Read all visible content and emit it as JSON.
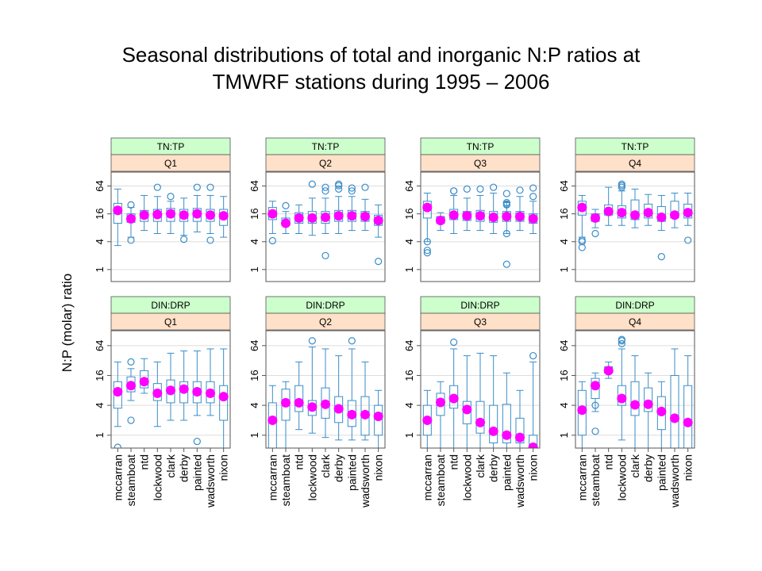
{
  "chart_data": {
    "type": "box",
    "title_lines": [
      "Seasonal distributions of total and inorganic N:P ratios at",
      "TMWRF stations during 1995 – 2006"
    ],
    "ylabel": "N:P (molar) ratio",
    "y_scale": "log2",
    "ylim": [
      0.55,
      128
    ],
    "y_ticks": [
      1,
      4,
      16,
      64
    ],
    "y_tick_labels": [
      "1",
      "4",
      "16",
      "64"
    ],
    "stations": [
      "mccarran",
      "steamboat",
      "ntd",
      "lockwood",
      "clark",
      "derby",
      "painted",
      "wadsworth",
      "nixon"
    ],
    "colors": {
      "box": "#3a8dc8",
      "median_dot": "#ff00ff",
      "strip_top": "#ccffcc",
      "strip_bottom": "#ffe0c8",
      "grid": "#dddddd",
      "frame": "#555555"
    },
    "panels": [
      {
        "ratio": "TN:TP",
        "quarter": "Q1",
        "boxes": [
          {
            "whisker_lo": 3.3,
            "q1": 10,
            "median": 19,
            "q3": 27,
            "whisker_hi": 55,
            "outliers": []
          },
          {
            "whisker_lo": 5,
            "q1": 10.5,
            "median": 12.5,
            "q3": 16,
            "whisker_hi": 22,
            "outliers": [
              25,
              4.3
            ]
          },
          {
            "whisker_lo": 7,
            "q1": 11,
            "median": 15,
            "q3": 19,
            "whisker_hi": 40,
            "outliers": []
          },
          {
            "whisker_lo": 6,
            "q1": 11,
            "median": 15.5,
            "q3": 20,
            "whisker_hi": 38,
            "outliers": [
              60
            ]
          },
          {
            "whisker_lo": 6,
            "q1": 11,
            "median": 16,
            "q3": 21,
            "whisker_hi": 30,
            "outliers": [
              38
            ]
          },
          {
            "whisker_lo": 5.5,
            "q1": 11,
            "median": 15,
            "q3": 20,
            "whisker_hi": 35,
            "outliers": [
              4.5
            ]
          },
          {
            "whisker_lo": 6.5,
            "q1": 11,
            "median": 16,
            "q3": 21,
            "whisker_hi": 40,
            "outliers": [
              60
            ]
          },
          {
            "whisker_lo": 6,
            "q1": 11,
            "median": 15,
            "q3": 20,
            "whisker_hi": 40,
            "outliers": [
              60,
              4.3
            ]
          },
          {
            "whisker_lo": 5,
            "q1": 9,
            "median": 14.5,
            "q3": 20,
            "whisker_hi": 38,
            "outliers": []
          }
        ]
      },
      {
        "ratio": "TN:TP",
        "quarter": "Q2",
        "boxes": [
          {
            "whisker_lo": 6,
            "q1": 12,
            "median": 16,
            "q3": 22,
            "whisker_hi": 30,
            "outliers": [
              4.2
            ]
          },
          {
            "whisker_lo": 6,
            "q1": 9,
            "median": 10,
            "q3": 13,
            "whisker_hi": 18,
            "outliers": [
              24
            ]
          },
          {
            "whisker_lo": 6,
            "q1": 10,
            "median": 13,
            "q3": 17,
            "whisker_hi": 25,
            "outliers": []
          },
          {
            "whisker_lo": 5.5,
            "q1": 10,
            "median": 13,
            "q3": 18,
            "whisker_hi": 35,
            "outliers": [
              70
            ]
          },
          {
            "whisker_lo": 6,
            "q1": 10,
            "median": 13.5,
            "q3": 18,
            "whisker_hi": 35,
            "outliers": [
              50,
              60,
              2
            ]
          },
          {
            "whisker_lo": 6,
            "q1": 11,
            "median": 14.5,
            "q3": 19,
            "whisker_hi": 38,
            "outliers": [
              55,
              65,
              70
            ]
          },
          {
            "whisker_lo": 7,
            "q1": 11,
            "median": 14.5,
            "q3": 19,
            "whisker_hi": 38,
            "outliers": [
              50,
              58
            ]
          },
          {
            "whisker_lo": 7,
            "q1": 11,
            "median": 14,
            "q3": 18,
            "whisker_hi": 33,
            "outliers": [
              60
            ]
          },
          {
            "whisker_lo": 5,
            "q1": 9,
            "median": 11.5,
            "q3": 15,
            "whisker_hi": 25,
            "outliers": [
              1.5
            ]
          }
        ]
      },
      {
        "ratio": "TN:TP",
        "quarter": "Q3",
        "boxes": [
          {
            "whisker_lo": 4,
            "q1": 13,
            "median": 22,
            "q3": 30,
            "whisker_hi": 45,
            "outliers": [
              4,
              2.6,
              2.3
            ]
          },
          {
            "whisker_lo": 7,
            "q1": 10,
            "median": 11.5,
            "q3": 14,
            "whisker_hi": 17,
            "outliers": []
          },
          {
            "whisker_lo": 6,
            "q1": 12,
            "median": 15,
            "q3": 20,
            "whisker_hi": 40,
            "outliers": [
              50,
              50
            ]
          },
          {
            "whisker_lo": 7,
            "q1": 11.5,
            "median": 14.5,
            "q3": 18,
            "whisker_hi": 35,
            "outliers": [
              55
            ]
          },
          {
            "whisker_lo": 7,
            "q1": 11,
            "median": 14.5,
            "q3": 19,
            "whisker_hi": 40,
            "outliers": [
              55
            ]
          },
          {
            "whisker_lo": 6,
            "q1": 10.5,
            "median": 13.5,
            "q3": 18,
            "whisker_hi": 45,
            "outliers": [
              60
            ]
          },
          {
            "whisker_lo": 6,
            "q1": 11,
            "median": 14,
            "q3": 18,
            "whisker_hi": 28,
            "outliers": [
              44,
              28,
              26,
              25,
              6,
              1.3
            ]
          },
          {
            "whisker_lo": 7,
            "q1": 11,
            "median": 14,
            "q3": 18,
            "whisker_hi": 38,
            "outliers": [
              52
            ]
          },
          {
            "whisker_lo": 6,
            "q1": 10,
            "median": 12.5,
            "q3": 16,
            "whisker_hi": 30,
            "outliers": [
              38,
              58
            ]
          }
        ]
      },
      {
        "ratio": "TN:TP",
        "quarter": "Q4",
        "boxes": [
          {
            "whisker_lo": 5,
            "q1": 15,
            "median": 22,
            "q3": 30,
            "whisker_hi": 40,
            "outliers": [
              4.3,
              4,
              3
            ]
          },
          {
            "whisker_lo": 8,
            "q1": 11,
            "median": 13,
            "q3": 16,
            "whisker_hi": 20,
            "outliers": [
              6
            ]
          },
          {
            "whisker_lo": 9,
            "q1": 15,
            "median": 18,
            "q3": 25,
            "whisker_hi": 60,
            "outliers": []
          },
          {
            "whisker_lo": 9,
            "q1": 13,
            "median": 17,
            "q3": 24,
            "whisker_hi": 50,
            "outliers": [
              60,
              65,
              70
            ]
          },
          {
            "whisker_lo": 8,
            "q1": 12,
            "median": 15,
            "q3": 32,
            "whisker_hi": 55,
            "outliers": []
          },
          {
            "whisker_lo": 9,
            "q1": 13,
            "median": 17,
            "q3": 26,
            "whisker_hi": 42,
            "outliers": []
          },
          {
            "whisker_lo": 7,
            "q1": 11,
            "median": 13.5,
            "q3": 23,
            "whisker_hi": 40,
            "outliers": [
              1.9
            ]
          },
          {
            "whisker_lo": 8,
            "q1": 13,
            "median": 15,
            "q3": 30,
            "whisker_hi": 45,
            "outliers": []
          },
          {
            "whisker_lo": 9,
            "q1": 13,
            "median": 17,
            "q3": 26,
            "whisker_hi": 45,
            "outliers": [
              4.3
            ]
          }
        ]
      },
      {
        "ratio": "DIN:DRP",
        "quarter": "Q1",
        "boxes": [
          {
            "whisker_lo": 1.5,
            "q1": 3.5,
            "median": 7.5,
            "q3": 12,
            "whisker_hi": 30,
            "outliers": [
              0.57
            ]
          },
          {
            "whisker_lo": 5,
            "q1": 7.5,
            "median": 10,
            "q3": 15,
            "whisker_hi": 22,
            "outliers": [
              30,
              2
            ]
          },
          {
            "whisker_lo": 7,
            "q1": 9,
            "median": 12,
            "q3": 20,
            "whisker_hi": 35,
            "outliers": []
          },
          {
            "whisker_lo": 1.5,
            "q1": 5,
            "median": 7,
            "q3": 11,
            "whisker_hi": 30,
            "outliers": []
          },
          {
            "whisker_lo": 2,
            "q1": 4.5,
            "median": 8,
            "q3": 13,
            "whisker_hi": 45,
            "outliers": []
          },
          {
            "whisker_lo": 2,
            "q1": 4.5,
            "median": 8.5,
            "q3": 12,
            "whisker_hi": 50,
            "outliers": []
          },
          {
            "whisker_lo": 2.5,
            "q1": 4.5,
            "median": 7.5,
            "q3": 12,
            "whisker_hi": 50,
            "outliers": [
              0.75
            ]
          },
          {
            "whisker_lo": 2.5,
            "q1": 4.5,
            "median": 7,
            "q3": 12,
            "whisker_hi": 55,
            "outliers": []
          },
          {
            "whisker_lo": 0.55,
            "q1": 2,
            "median": 6,
            "q3": 10,
            "whisker_hi": 55,
            "outliers": []
          }
        ]
      },
      {
        "ratio": "DIN:DRP",
        "quarter": "Q2",
        "boxes": [
          {
            "whisker_lo": 0.55,
            "q1": 0.55,
            "median": 2,
            "q3": 4.5,
            "whisker_hi": 10,
            "outliers": []
          },
          {
            "whisker_lo": 0.55,
            "q1": 2,
            "median": 4.5,
            "q3": 8.5,
            "whisker_hi": 12,
            "outliers": []
          },
          {
            "whisker_lo": 1.3,
            "q1": 3,
            "median": 4.5,
            "q3": 10,
            "whisker_hi": 30,
            "outliers": []
          },
          {
            "whisker_lo": 1.1,
            "q1": 2.5,
            "median": 3.7,
            "q3": 5,
            "whisker_hi": 60,
            "outliers": [
              80
            ]
          },
          {
            "whisker_lo": 0.9,
            "q1": 2.2,
            "median": 4.2,
            "q3": 9,
            "whisker_hi": 55,
            "outliers": []
          },
          {
            "whisker_lo": 0.8,
            "q1": 1.8,
            "median": 3.4,
            "q3": 6,
            "whisker_hi": 40,
            "outliers": []
          },
          {
            "whisker_lo": 0.8,
            "q1": 1.5,
            "median": 2.6,
            "q3": 5,
            "whisker_hi": 55,
            "outliers": [
              80
            ]
          },
          {
            "whisker_lo": 0.8,
            "q1": 1,
            "median": 2.6,
            "q3": 6,
            "whisker_hi": 30,
            "outliers": []
          },
          {
            "whisker_lo": 0.55,
            "q1": 1,
            "median": 2.4,
            "q3": 4,
            "whisker_hi": 8,
            "outliers": []
          }
        ]
      },
      {
        "ratio": "DIN:DRP",
        "quarter": "Q3",
        "boxes": [
          {
            "whisker_lo": 0.55,
            "q1": 1,
            "median": 2,
            "q3": 4,
            "whisker_hi": 8,
            "outliers": []
          },
          {
            "whisker_lo": 0.55,
            "q1": 2.5,
            "median": 4.6,
            "q3": 7,
            "whisker_hi": 12,
            "outliers": []
          },
          {
            "whisker_lo": 0.55,
            "q1": 3.5,
            "median": 5.5,
            "q3": 10,
            "whisker_hi": 55,
            "outliers": [
              75
            ]
          },
          {
            "whisker_lo": 0.55,
            "q1": 1.7,
            "median": 3.3,
            "q3": 4.8,
            "whisker_hi": 40,
            "outliers": []
          },
          {
            "whisker_lo": 0.55,
            "q1": 1.1,
            "median": 1.8,
            "q3": 4.8,
            "whisker_hi": 45,
            "outliers": []
          },
          {
            "whisker_lo": 0.55,
            "q1": 0.7,
            "median": 1.2,
            "q3": 4,
            "whisker_hi": 40,
            "outliers": []
          },
          {
            "whisker_lo": 0.55,
            "q1": 0.7,
            "median": 1,
            "q3": 4.2,
            "whisker_hi": 18,
            "outliers": []
          },
          {
            "whisker_lo": 0.55,
            "q1": 0.7,
            "median": 0.9,
            "q3": 2.2,
            "whisker_hi": 8,
            "outliers": []
          },
          {
            "whisker_lo": 0.55,
            "q1": 0.55,
            "median": 0.57,
            "q3": 1,
            "whisker_hi": 30,
            "outliers": [
              40
            ]
          }
        ]
      },
      {
        "ratio": "DIN:DRP",
        "quarter": "Q4",
        "boxes": [
          {
            "whisker_lo": 0.55,
            "q1": 1,
            "median": 3.2,
            "q3": 8,
            "whisker_hi": 12,
            "outliers": []
          },
          {
            "whisker_lo": 3,
            "q1": 5.5,
            "median": 10,
            "q3": 14,
            "whisker_hi": 18,
            "outliers": [
              4,
              1.2
            ]
          },
          {
            "whisker_lo": 14,
            "q1": 18,
            "median": 20,
            "q3": 24,
            "whisker_hi": 30,
            "outliers": []
          },
          {
            "whisker_lo": 0.8,
            "q1": 4,
            "median": 5.5,
            "q3": 10,
            "whisker_hi": 55,
            "outliers": [
              70,
              80,
              85
            ]
          },
          {
            "whisker_lo": 0.55,
            "q1": 2.5,
            "median": 4.1,
            "q3": 12,
            "whisker_hi": 40,
            "outliers": []
          },
          {
            "whisker_lo": 0.55,
            "q1": 3,
            "median": 4.2,
            "q3": 9,
            "whisker_hi": 18,
            "outliers": []
          },
          {
            "whisker_lo": 0.55,
            "q1": 1.3,
            "median": 3,
            "q3": 6,
            "whisker_hi": 12,
            "outliers": []
          },
          {
            "whisker_lo": 0.55,
            "q1": 0.55,
            "median": 2.2,
            "q3": 16,
            "whisker_hi": 55,
            "outliers": []
          },
          {
            "whisker_lo": 0.55,
            "q1": 0.55,
            "median": 1.8,
            "q3": 10,
            "whisker_hi": 40,
            "outliers": []
          }
        ]
      }
    ]
  }
}
